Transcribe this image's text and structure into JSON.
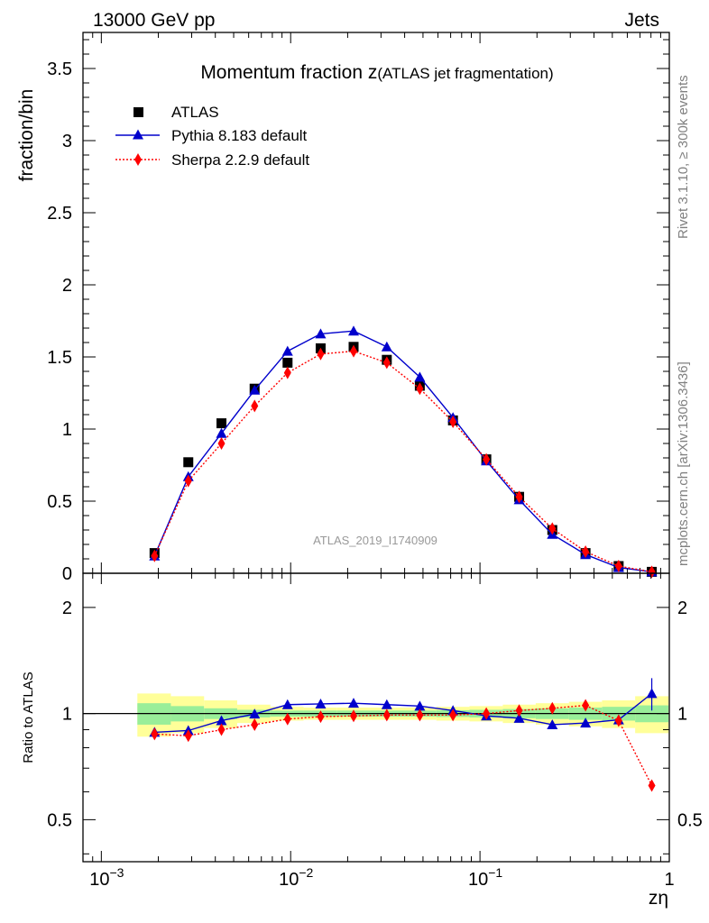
{
  "header": {
    "energy_label": "13000 GeV pp",
    "category_label": "Jets"
  },
  "side_labels": {
    "rivet": "Rivet 3.1.10, ≥ 300k events",
    "mcplots": "mcplots.cern.ch [arXiv:1306.3436]"
  },
  "chart_data": [
    {
      "panel": "main",
      "type": "scatter",
      "title_main": "Momentum fraction z",
      "title_sub": "(ATLAS jet fragmentation)",
      "ylabel": "fraction/bin",
      "xscale": "log",
      "xlim": [
        0.0008,
        1
      ],
      "ylim": [
        0,
        3.75
      ],
      "yticks": [
        0,
        0.5,
        1,
        1.5,
        2,
        2.5,
        3,
        3.5
      ],
      "ytick_labels": [
        "0",
        "0.5",
        "1",
        "1.5",
        "2",
        "2.5",
        "3",
        "3.5"
      ],
      "watermark": "ATLAS_2019_I1740909",
      "legend_position": "top-left",
      "x": [
        0.00191,
        0.00288,
        0.00431,
        0.00645,
        0.00963,
        0.0144,
        0.0215,
        0.0322,
        0.0481,
        0.072,
        0.108,
        0.161,
        0.241,
        0.361,
        0.54,
        0.808
      ],
      "series": [
        {
          "name": "ATLAS",
          "marker": "square",
          "color": "#000000",
          "values": [
            0.14,
            0.77,
            1.04,
            1.28,
            1.46,
            1.56,
            1.57,
            1.48,
            1.3,
            1.06,
            0.79,
            0.53,
            0.3,
            0.14,
            0.05,
            0.01
          ]
        },
        {
          "name": "Pythia 8.183 default",
          "marker": "triangle",
          "color": "#0000cc",
          "line": "solid",
          "values": [
            0.12,
            0.67,
            0.97,
            1.27,
            1.54,
            1.66,
            1.68,
            1.57,
            1.36,
            1.08,
            0.78,
            0.51,
            0.27,
            0.13,
            0.04,
            0.01
          ]
        },
        {
          "name": "Sherpa 2.2.9 default",
          "marker": "diamond",
          "color": "#ff0000",
          "line": "dotted",
          "values": [
            0.12,
            0.64,
            0.9,
            1.16,
            1.39,
            1.52,
            1.54,
            1.46,
            1.28,
            1.05,
            0.79,
            0.53,
            0.31,
            0.15,
            0.05,
            0.01
          ]
        }
      ]
    },
    {
      "panel": "ratio",
      "type": "line",
      "ylabel": "Ratio to ATLAS",
      "yscale": "log",
      "xscale": "log",
      "xlim": [
        0.0008,
        1
      ],
      "ylim": [
        0.38,
        2.5
      ],
      "yticks": [
        0.5,
        1,
        2
      ],
      "ytick_labels": [
        "0.5",
        "1",
        "2"
      ],
      "xticks": [
        0.001,
        0.01,
        0.1,
        1
      ],
      "xtick_labels": [
        "10",
        "10",
        "10",
        "1"
      ],
      "xtick_exponents": [
        "−3",
        "−2",
        "−1",
        ""
      ],
      "xlabel": "zη",
      "bin_edges": [
        0.00155,
        0.00233,
        0.00349,
        0.00522,
        0.00781,
        0.0117,
        0.0175,
        0.0262,
        0.0393,
        0.0588,
        0.088,
        0.132,
        0.197,
        0.295,
        0.441,
        0.66,
        0.99
      ],
      "band_inner": [
        0.07,
        0.05,
        0.035,
        0.025,
        0.02,
        0.02,
        0.02,
        0.02,
        0.02,
        0.022,
        0.025,
        0.03,
        0.035,
        0.04,
        0.045,
        0.055
      ],
      "band_outer": [
        0.14,
        0.12,
        0.09,
        0.06,
        0.045,
        0.04,
        0.04,
        0.04,
        0.04,
        0.045,
        0.05,
        0.06,
        0.07,
        0.08,
        0.09,
        0.12
      ],
      "series": [
        {
          "name": "Pythia 8.183 default",
          "color": "#0000cc",
          "values": [
            0.885,
            0.895,
            0.955,
            0.997,
            1.06,
            1.065,
            1.07,
            1.06,
            1.05,
            1.02,
            0.985,
            0.97,
            0.93,
            0.94,
            0.96,
            1.14
          ],
          "errors": [
            0.02,
            0.01,
            0.01,
            0.01,
            0.01,
            0.01,
            0.01,
            0.01,
            0.01,
            0.01,
            0.01,
            0.01,
            0.01,
            0.02,
            0.03,
            0.12
          ]
        },
        {
          "name": "Sherpa 2.2.9 default",
          "color": "#ff0000",
          "values": [
            0.875,
            0.865,
            0.9,
            0.93,
            0.965,
            0.98,
            0.985,
            0.99,
            0.99,
            0.99,
            1.0,
            1.02,
            1.035,
            1.055,
            0.955,
            0.625
          ],
          "errors": [
            0.02,
            0.01,
            0.01,
            0.01,
            0.01,
            0.01,
            0.01,
            0.01,
            0.01,
            0.01,
            0.01,
            0.01,
            0.01,
            0.02,
            0.03,
            0.02
          ]
        }
      ]
    }
  ]
}
